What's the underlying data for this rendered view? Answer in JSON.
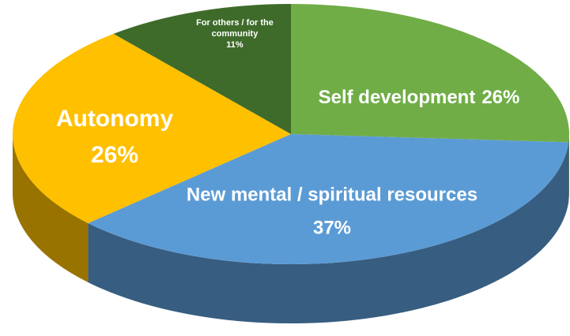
{
  "chart_data": {
    "type": "pie",
    "categories": [
      "Self development",
      "New mental / spiritual resources",
      "Autonomy",
      "For others / for the community"
    ],
    "values": [
      26,
      37,
      26,
      11
    ],
    "value_labels": [
      "26%",
      "37%",
      "26%",
      "11%"
    ],
    "colors": [
      "#70ad47",
      "#5b9bd5",
      "#ffc000",
      "#3e6b2a"
    ]
  }
}
